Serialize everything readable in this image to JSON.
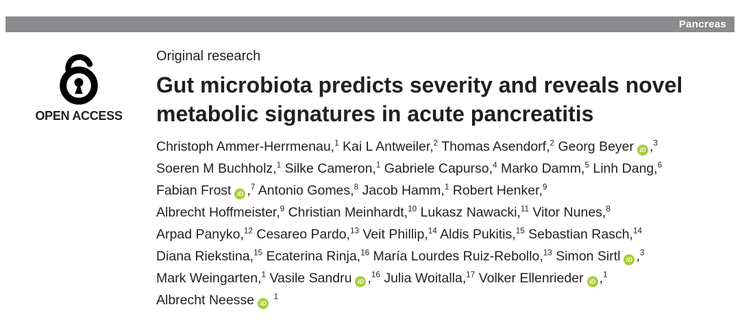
{
  "journal_banner": {
    "label": "Pancreas",
    "background": "#8b8b8e",
    "text_color": "#ffffff"
  },
  "open_access": {
    "label": "OPEN ACCESS",
    "icon": "open-access-lock-icon"
  },
  "article": {
    "section_label": "Original research",
    "title": "Gut microbiota predicts severity and reveals novel metabolic signatures in acute pancreatitis",
    "title_lines": [
      "Gut microbiota predicts severity and reveals novel",
      "metabolic signatures in acute pancreatitis"
    ],
    "authors": [
      {
        "name": "Christoph Ammer-Herrmenau",
        "sup": "1",
        "orcid": false,
        "br": false
      },
      {
        "name": "Kai L Antweiler",
        "sup": "2",
        "orcid": false,
        "br": false
      },
      {
        "name": "Thomas Asendorf",
        "sup": "2",
        "orcid": false,
        "br": false
      },
      {
        "name": "Georg Beyer",
        "sup": "3",
        "orcid": true,
        "br": true
      },
      {
        "name": "Soeren M Buchholz",
        "sup": "1",
        "orcid": false,
        "br": false
      },
      {
        "name": "Silke Cameron",
        "sup": "1",
        "orcid": false,
        "br": false
      },
      {
        "name": "Gabriele Capurso",
        "sup": "4",
        "orcid": false,
        "br": false
      },
      {
        "name": "Marko Damm",
        "sup": "5",
        "orcid": false,
        "br": false
      },
      {
        "name": "Linh Dang",
        "sup": "6",
        "orcid": false,
        "br": true
      },
      {
        "name": "Fabian Frost",
        "sup": "7",
        "orcid": true,
        "br": false
      },
      {
        "name": "Antonio Gomes",
        "sup": "8",
        "orcid": false,
        "br": false
      },
      {
        "name": "Jacob Hamm",
        "sup": "1",
        "orcid": false,
        "br": false
      },
      {
        "name": "Robert Henker",
        "sup": "9",
        "orcid": false,
        "br": true
      },
      {
        "name": "Albrecht Hoffmeister",
        "sup": "9",
        "orcid": false,
        "br": false
      },
      {
        "name": "Christian Meinhardt",
        "sup": "10",
        "orcid": false,
        "br": false
      },
      {
        "name": "Lukasz Nawacki",
        "sup": "11",
        "orcid": false,
        "br": false
      },
      {
        "name": "Vitor Nunes",
        "sup": "8",
        "orcid": false,
        "br": true
      },
      {
        "name": "Arpad Panyko",
        "sup": "12",
        "orcid": false,
        "br": false
      },
      {
        "name": "Cesareo Pardo",
        "sup": "13",
        "orcid": false,
        "br": false
      },
      {
        "name": "Veit Phillip",
        "sup": "14",
        "orcid": false,
        "br": false
      },
      {
        "name": "Aldis Pukitis",
        "sup": "15",
        "orcid": false,
        "br": false
      },
      {
        "name": "Sebastian Rasch",
        "sup": "14",
        "orcid": false,
        "br": true
      },
      {
        "name": "Diana Riekstina",
        "sup": "15",
        "orcid": false,
        "br": false
      },
      {
        "name": "Ecaterina Rinja",
        "sup": "16",
        "orcid": false,
        "br": false
      },
      {
        "name": "María Lourdes Ruiz-Rebollo",
        "sup": "13",
        "orcid": false,
        "br": false
      },
      {
        "name": "Simon Sirtl",
        "sup": "3",
        "orcid": true,
        "br": true
      },
      {
        "name": "Mark Weingarten",
        "sup": "1",
        "orcid": false,
        "br": false
      },
      {
        "name": "Vasile Sandru",
        "sup": "16",
        "orcid": true,
        "br": false
      },
      {
        "name": "Julia Woitalla",
        "sup": "17",
        "orcid": false,
        "br": false
      },
      {
        "name": "Volker Ellenrieder",
        "sup": "1",
        "orcid": true,
        "br": true
      },
      {
        "name": "Albrecht Neesse",
        "sup": "1",
        "orcid": true,
        "br": false
      }
    ]
  },
  "orcid_icon": {
    "label": "iD",
    "color": "#a6ce39"
  }
}
